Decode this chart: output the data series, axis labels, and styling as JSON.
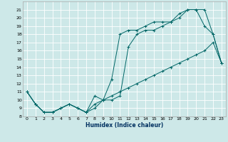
{
  "xlabel": "Humidex (Indice chaleur)",
  "bg_color": "#cde8e8",
  "grid_color": "#ffffff",
  "line_color": "#006666",
  "xlim": [
    -0.5,
    23.5
  ],
  "ylim": [
    8,
    22
  ],
  "xticks": [
    0,
    1,
    2,
    3,
    4,
    5,
    6,
    7,
    8,
    9,
    10,
    11,
    12,
    13,
    14,
    15,
    16,
    17,
    18,
    19,
    20,
    21,
    22,
    23
  ],
  "yticks": [
    8,
    9,
    10,
    11,
    12,
    13,
    14,
    15,
    16,
    17,
    18,
    19,
    20,
    21
  ],
  "series1_x": [
    0,
    1,
    2,
    3,
    4,
    5,
    6,
    7,
    8,
    9,
    10,
    11,
    12,
    13,
    14,
    15,
    16,
    17,
    18,
    19,
    20,
    21,
    22,
    23
  ],
  "series1_y": [
    11,
    9.5,
    8.5,
    8.5,
    9,
    9.5,
    9,
    8.5,
    9,
    10,
    12.5,
    18,
    18.5,
    18.5,
    19,
    19.5,
    19.5,
    19.5,
    20,
    21,
    21,
    19,
    18,
    14.5
  ],
  "series2_x": [
    0,
    1,
    2,
    3,
    4,
    5,
    6,
    7,
    8,
    9,
    10,
    11,
    12,
    13,
    14,
    15,
    16,
    17,
    18,
    19,
    20,
    21,
    22,
    23
  ],
  "series2_y": [
    11,
    9.5,
    8.5,
    8.5,
    9,
    9.5,
    9,
    8.5,
    10.5,
    10,
    10,
    10.5,
    16.5,
    18,
    18.5,
    18.5,
    19,
    19.5,
    20.5,
    21,
    21,
    21,
    18,
    14.5
  ],
  "series3_x": [
    0,
    1,
    2,
    3,
    4,
    5,
    6,
    7,
    8,
    9,
    10,
    11,
    12,
    13,
    14,
    15,
    16,
    17,
    18,
    19,
    20,
    21,
    22,
    23
  ],
  "series3_y": [
    11,
    9.5,
    8.5,
    8.5,
    9,
    9.5,
    9,
    8.5,
    9.5,
    10,
    10.5,
    11,
    11.5,
    12,
    12.5,
    13,
    13.5,
    14,
    14.5,
    15,
    15.5,
    16,
    17,
    14.5
  ]
}
